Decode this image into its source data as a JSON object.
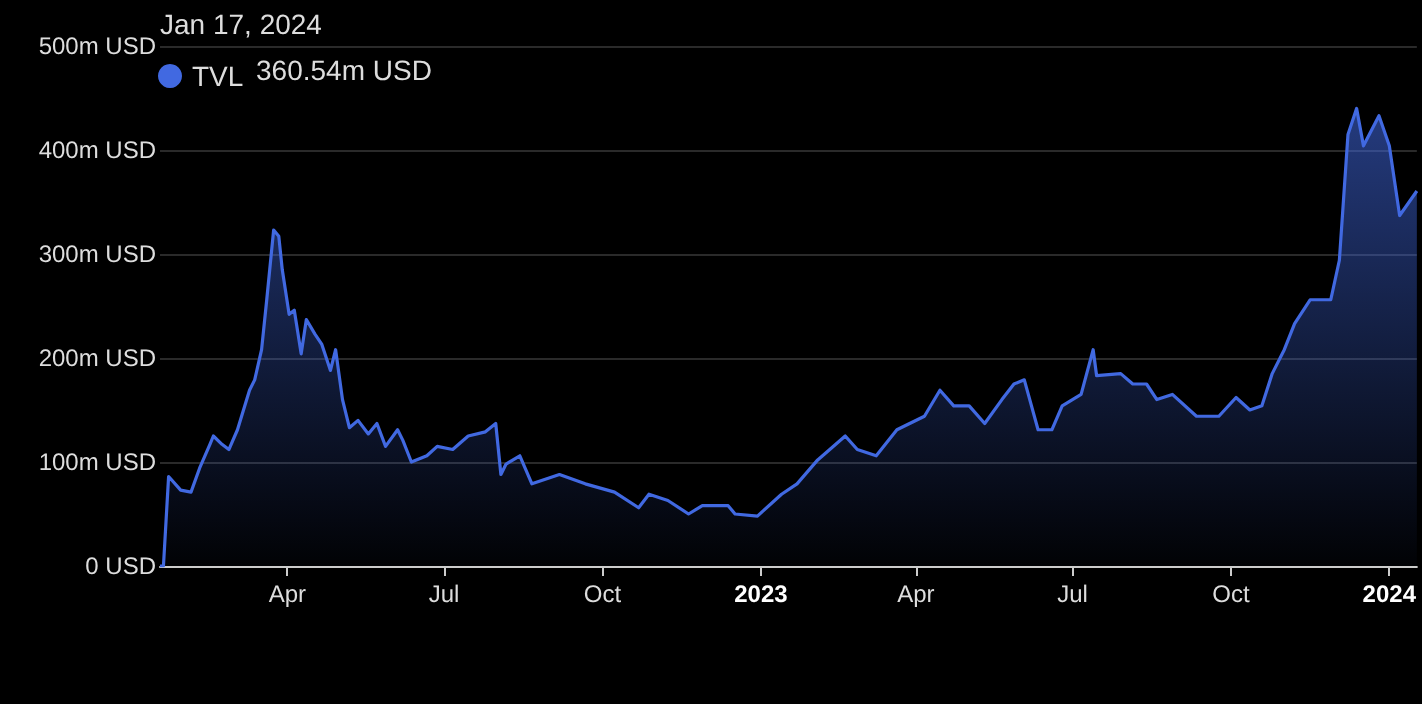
{
  "chart_data": {
    "type": "area",
    "x": [
      "2022-01-17",
      "2022-01-19",
      "2022-01-22",
      "2022-01-29",
      "2022-02-04",
      "2022-02-09",
      "2022-02-15",
      "2022-02-17",
      "2022-02-22",
      "2022-02-26",
      "2022-03-03",
      "2022-03-10",
      "2022-03-13",
      "2022-03-17",
      "2022-03-20",
      "2022-03-24",
      "2022-03-27",
      "2022-03-29",
      "2022-04-02",
      "2022-04-05",
      "2022-04-09",
      "2022-04-12",
      "2022-04-17",
      "2022-04-21",
      "2022-04-26",
      "2022-04-29",
      "2022-05-03",
      "2022-05-07",
      "2022-05-12",
      "2022-05-18",
      "2022-05-23",
      "2022-05-28",
      "2022-06-04",
      "2022-06-07",
      "2022-06-12",
      "2022-06-21",
      "2022-06-27",
      "2022-07-06",
      "2022-07-15",
      "2022-07-25",
      "2022-07-31",
      "2022-08-03",
      "2022-08-06",
      "2022-08-14",
      "2022-08-21",
      "2022-09-06",
      "2022-09-21",
      "2022-10-08",
      "2022-10-22",
      "2022-10-28",
      "2022-11-08",
      "2022-11-20",
      "2022-11-28",
      "2022-12-13",
      "2022-12-17",
      "2022-12-30",
      "2023-01-13",
      "2023-01-22",
      "2023-02-03",
      "2023-02-19",
      "2023-02-26",
      "2023-03-09",
      "2023-03-21",
      "2023-04-06",
      "2023-04-15",
      "2023-04-23",
      "2023-05-02",
      "2023-05-11",
      "2023-05-21",
      "2023-05-28",
      "2023-06-03",
      "2023-06-11",
      "2023-06-19",
      "2023-06-25",
      "2023-07-06",
      "2023-07-13",
      "2023-07-15",
      "2023-07-29",
      "2023-08-05",
      "2023-08-13",
      "2023-08-19",
      "2023-08-28",
      "2023-09-11",
      "2023-09-24",
      "2023-10-04",
      "2023-10-12",
      "2023-10-19",
      "2023-10-25",
      "2023-11-01",
      "2023-11-07",
      "2023-11-16",
      "2023-11-28",
      "2023-12-03",
      "2023-12-08",
      "2023-12-13",
      "2023-12-17",
      "2023-12-26",
      "2024-01-01",
      "2024-01-07",
      "2024-01-17"
    ],
    "series": [
      {
        "name": "TVL",
        "color": "#4169e1",
        "values": [
          0,
          0,
          86,
          73,
          71,
          94,
          117,
          125,
          117,
          112,
          131,
          169,
          179,
          208,
          256,
          323,
          317,
          285,
          242,
          246,
          204,
          237,
          223,
          213,
          188,
          208,
          160,
          133,
          140,
          127,
          137,
          115,
          131,
          121,
          100,
          106,
          115,
          112,
          125,
          129,
          137,
          88,
          98,
          106,
          79,
          88,
          79,
          71,
          56,
          69,
          63,
          50,
          58,
          58,
          50,
          48,
          69,
          79,
          102,
          125,
          112,
          106,
          131,
          144,
          169,
          154,
          154,
          137,
          160,
          175,
          179,
          131,
          131,
          154,
          165,
          208,
          183,
          185,
          175,
          175,
          160,
          165,
          144,
          144,
          162,
          150,
          154,
          185,
          208,
          233,
          256,
          256,
          294,
          415,
          440,
          404,
          433,
          404,
          337,
          360.54
        ]
      }
    ],
    "xlim": [
      "2022-01-17",
      "2024-01-17"
    ],
    "xticks": [
      {
        "value": "2022-04-01",
        "label": "Apr"
      },
      {
        "value": "2022-07-01",
        "label": "Jul"
      },
      {
        "value": "2022-10-01",
        "label": "Oct"
      },
      {
        "value": "2023-01-01",
        "label": "2023"
      },
      {
        "value": "2023-04-01",
        "label": "Apr"
      },
      {
        "value": "2023-07-01",
        "label": "Jul"
      },
      {
        "value": "2023-10-01",
        "label": "Oct"
      },
      {
        "value": "2024-01-01",
        "label": "2024"
      }
    ],
    "ylim": [
      0,
      500
    ],
    "yticks": [
      {
        "value": 0,
        "label": "0 USD"
      },
      {
        "value": 100,
        "label": "100m USD"
      },
      {
        "value": 200,
        "label": "200m USD"
      },
      {
        "value": 300,
        "label": "300m USD"
      },
      {
        "value": 400,
        "label": "400m USD"
      },
      {
        "value": 500,
        "label": "500m USD"
      }
    ],
    "grid": "y",
    "legend": "top left",
    "annotations": [
      "Jan 17, 2024",
      "360.54m USD"
    ]
  }
}
